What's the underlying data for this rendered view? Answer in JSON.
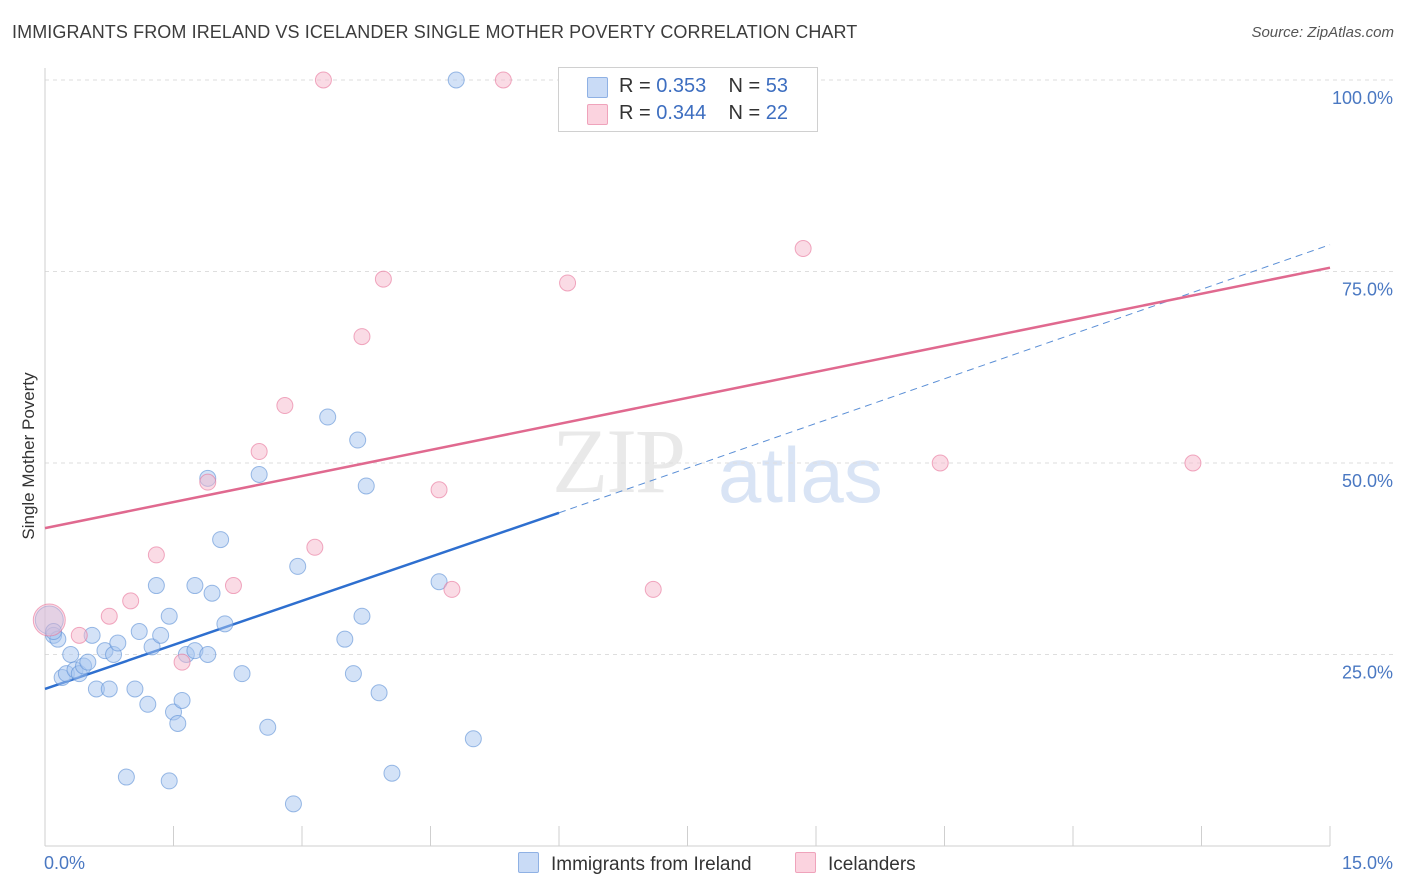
{
  "title": "IMMIGRANTS FROM IRELAND VS ICELANDER SINGLE MOTHER POVERTY CORRELATION CHART",
  "source": "Source: ZipAtlas.com",
  "watermark": {
    "zip": "ZIP",
    "atlas": "atlas"
  },
  "legend": {
    "rows": [
      {
        "r_label": "R = ",
        "r_value": "0.353",
        "n_label": "N = ",
        "n_value": "53",
        "color": "#a8c6f0"
      },
      {
        "r_label": "R = ",
        "r_value": "0.344",
        "n_label": "N = ",
        "n_value": "22",
        "color": "#f5b8cb"
      }
    ]
  },
  "bottom_legend": [
    {
      "label": "Immigrants from Ireland",
      "color": "#a8c6f0"
    },
    {
      "label": "Icelanders",
      "color": "#f5b8cb"
    }
  ],
  "chart_data": {
    "type": "scatter",
    "title": "IMMIGRANTS FROM IRELAND VS ICELANDER SINGLE MOTHER POVERTY CORRELATION CHART",
    "xlabel": "",
    "ylabel": "Single Mother Poverty",
    "xlim": [
      0,
      15
    ],
    "ylim": [
      0,
      100
    ],
    "x_tick_labels": [
      "0.0%",
      "15.0%"
    ],
    "y_tick_labels": [
      {
        "value": 100,
        "label": "100.0%"
      },
      {
        "value": 75,
        "label": "75.0%"
      },
      {
        "value": 50,
        "label": "50.0%"
      },
      {
        "value": 25,
        "label": "25.0%"
      }
    ],
    "grid": true,
    "legend_position": "top-center",
    "series": [
      {
        "name": "Immigrants from Ireland",
        "color": "#5b8fd6",
        "fill": "#a8c6f0",
        "points": [
          [
            0.05,
            29.5
          ],
          [
            0.1,
            27.5
          ],
          [
            0.15,
            27.0
          ],
          [
            0.2,
            22.0
          ],
          [
            0.25,
            22.5
          ],
          [
            0.3,
            25.0
          ],
          [
            0.35,
            23.0
          ],
          [
            0.4,
            22.5
          ],
          [
            0.45,
            23.5
          ],
          [
            0.5,
            24.0
          ],
          [
            0.55,
            27.5
          ],
          [
            0.6,
            20.5
          ],
          [
            0.7,
            25.5
          ],
          [
            0.75,
            20.5
          ],
          [
            0.8,
            25.0
          ],
          [
            0.85,
            26.5
          ],
          [
            0.95,
            9.0
          ],
          [
            1.05,
            20.5
          ],
          [
            1.1,
            28.0
          ],
          [
            1.2,
            18.5
          ],
          [
            1.25,
            26.0
          ],
          [
            1.3,
            34.0
          ],
          [
            1.35,
            27.5
          ],
          [
            1.45,
            30.0
          ],
          [
            1.45,
            8.5
          ],
          [
            1.5,
            17.5
          ],
          [
            1.55,
            16.0
          ],
          [
            1.6,
            19.0
          ],
          [
            1.65,
            25.0
          ],
          [
            1.75,
            25.5
          ],
          [
            1.75,
            34.0
          ],
          [
            1.9,
            25.0
          ],
          [
            1.9,
            48.0
          ],
          [
            1.95,
            33.0
          ],
          [
            2.05,
            40.0
          ],
          [
            2.1,
            29.0
          ],
          [
            2.3,
            22.5
          ],
          [
            2.5,
            48.5
          ],
          [
            2.6,
            15.5
          ],
          [
            2.9,
            5.5
          ],
          [
            2.95,
            36.5
          ],
          [
            3.3,
            56.0
          ],
          [
            3.5,
            27.0
          ],
          [
            3.6,
            22.5
          ],
          [
            3.65,
            53.0
          ],
          [
            3.7,
            30.0
          ],
          [
            3.75,
            47.0
          ],
          [
            3.9,
            20.0
          ],
          [
            4.05,
            9.5
          ],
          [
            4.6,
            34.5
          ],
          [
            4.8,
            100.0
          ],
          [
            5.0,
            14.0
          ],
          [
            0.1,
            28.0
          ]
        ],
        "trend": {
          "x": [
            0,
            6
          ],
          "y": [
            20.5,
            43.5
          ]
        },
        "trend_extension": {
          "x": [
            6,
            15
          ],
          "y": [
            43.5,
            78.5
          ]
        }
      },
      {
        "name": "Icelanders",
        "color": "#e8739a",
        "fill": "#f5b8cb",
        "points": [
          [
            0.05,
            29.5
          ],
          [
            0.4,
            27.5
          ],
          [
            0.75,
            30.0
          ],
          [
            1.0,
            32.0
          ],
          [
            1.3,
            38.0
          ],
          [
            1.6,
            24.0
          ],
          [
            1.9,
            47.5
          ],
          [
            2.2,
            34.0
          ],
          [
            2.5,
            51.5
          ],
          [
            2.8,
            57.5
          ],
          [
            3.15,
            39.0
          ],
          [
            3.7,
            66.5
          ],
          [
            3.95,
            74.0
          ],
          [
            4.6,
            46.5
          ],
          [
            4.75,
            33.5
          ],
          [
            3.25,
            100.0
          ],
          [
            5.35,
            100.0
          ],
          [
            6.1,
            73.5
          ],
          [
            7.1,
            33.5
          ],
          [
            8.85,
            78.0
          ],
          [
            10.45,
            50.0
          ],
          [
            13.4,
            50.0
          ]
        ],
        "trend": {
          "x": [
            0,
            15
          ],
          "y": [
            41.5,
            75.5
          ]
        }
      }
    ]
  }
}
